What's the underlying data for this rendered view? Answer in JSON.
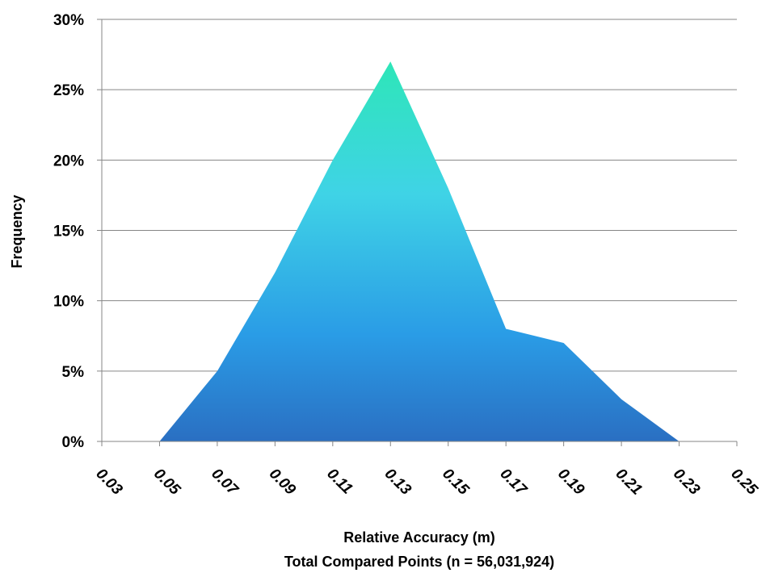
{
  "chart_data": {
    "type": "area",
    "title": "",
    "xlabel": "Relative Accuracy (m)",
    "xlabel_line2": "Total Compared Points (n = 56,031,924)",
    "ylabel": "Frequency",
    "x_tick_labels": [
      "0.03",
      "0.05",
      "0.07",
      "0.09",
      "0.11",
      "0.13",
      "0.15",
      "0.17",
      "0.19",
      "0.21",
      "0.23",
      "0.25"
    ],
    "y_tick_labels": [
      "0%",
      "5%",
      "10%",
      "15%",
      "20%",
      "25%",
      "30%"
    ],
    "y_ticks": [
      0,
      5,
      10,
      15,
      20,
      25,
      30
    ],
    "xlim": [
      0.03,
      0.25
    ],
    "ylim": [
      0,
      30
    ],
    "grid": true,
    "legend": "none",
    "series": [
      {
        "x": [
          0.05,
          0.07,
          0.09,
          0.11,
          0.13,
          0.15,
          0.17,
          0.19,
          0.21,
          0.23
        ],
        "values": [
          0,
          5,
          12,
          20,
          27,
          18,
          8,
          7,
          3,
          0
        ]
      }
    ],
    "colors": {
      "gradient_top": "#2ee6b8",
      "gradient_mid": "#3fd3e6",
      "gradient_low": "#2a9ce6",
      "gradient_bottom": "#2a6fc2",
      "gridline": "#868686",
      "axis": "#868686"
    }
  }
}
